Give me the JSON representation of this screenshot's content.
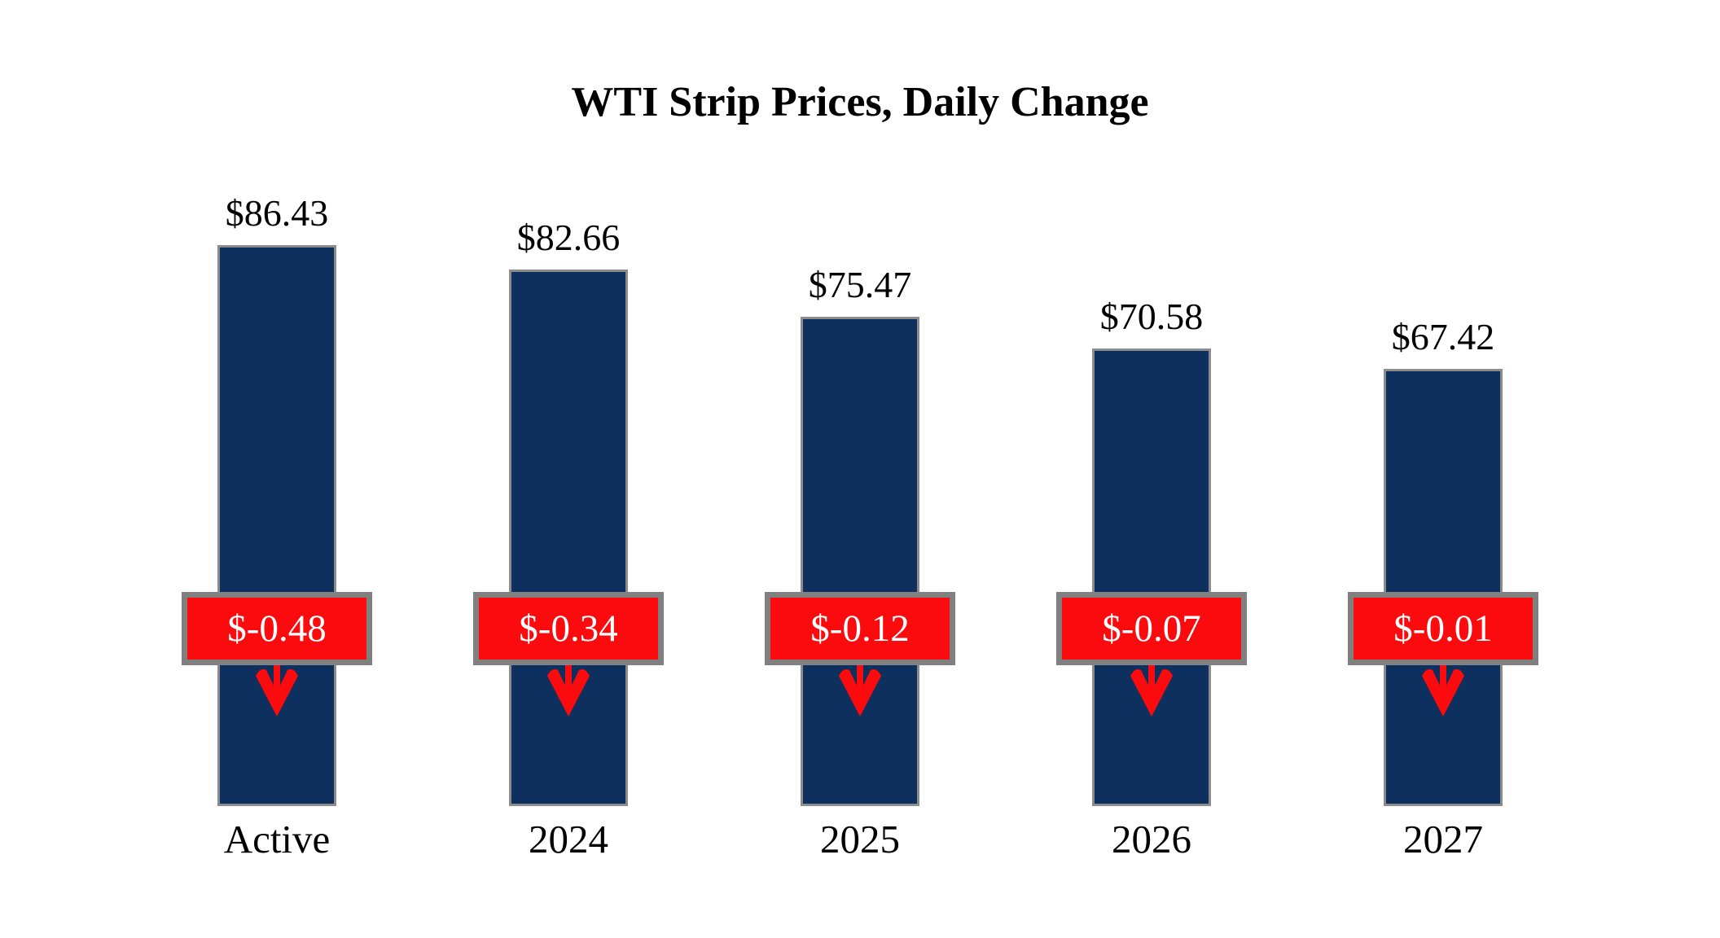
{
  "chart_data": {
    "type": "bar",
    "title": "WTI Strip Prices, Daily Change",
    "categories": [
      "Active",
      "2024",
      "2025",
      "2026",
      "2027"
    ],
    "series": [
      {
        "name": "Strip Price",
        "values": [
          86.43,
          82.66,
          75.47,
          70.58,
          67.42
        ],
        "labels": [
          "$86.43",
          "$82.66",
          "$75.47",
          "$70.58",
          "$67.42"
        ]
      },
      {
        "name": "Daily Change",
        "values": [
          -0.48,
          -0.34,
          -0.12,
          -0.07,
          -0.01
        ],
        "labels": [
          "$-0.48",
          "$-0.34",
          "$-0.12",
          "$-0.07",
          "$-0.01"
        ]
      }
    ],
    "xlabel": "",
    "ylabel": "",
    "ylim": [
      0,
      90
    ],
    "grid": false,
    "legend": "none",
    "colors": {
      "bar_fill": "#0e305e",
      "bar_border": "#8c8c8c",
      "badge_fill": "#fb0b0e",
      "badge_border": "#808080",
      "badge_text": "#ffffff",
      "arrow": "#fb0b0e",
      "label_text": "#000000",
      "background": "#ffffff"
    }
  }
}
